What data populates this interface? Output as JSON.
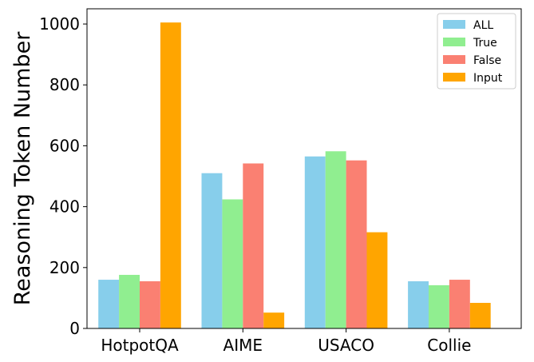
{
  "chart_data": {
    "type": "bar",
    "categories": [
      "HotpotQA",
      "AIME",
      "USACO",
      "Collie"
    ],
    "series": [
      {
        "name": "ALL",
        "color": "#87CEEB",
        "values": [
          160,
          510,
          565,
          155
        ]
      },
      {
        "name": "True",
        "color": "#90EE90",
        "values": [
          176,
          424,
          582,
          142
        ]
      },
      {
        "name": "False",
        "color": "#FA8072",
        "values": [
          155,
          542,
          552,
          160
        ]
      },
      {
        "name": "Input",
        "color": "#FFA500",
        "values": [
          1005,
          52,
          316,
          84
        ]
      }
    ],
    "title": "",
    "xlabel": "",
    "ylabel": "Reasoning Token Number",
    "ylim": [
      0,
      1050
    ],
    "yticks": [
      0,
      200,
      400,
      600,
      800,
      1000
    ],
    "grid": false,
    "legend_position": "top-right"
  }
}
